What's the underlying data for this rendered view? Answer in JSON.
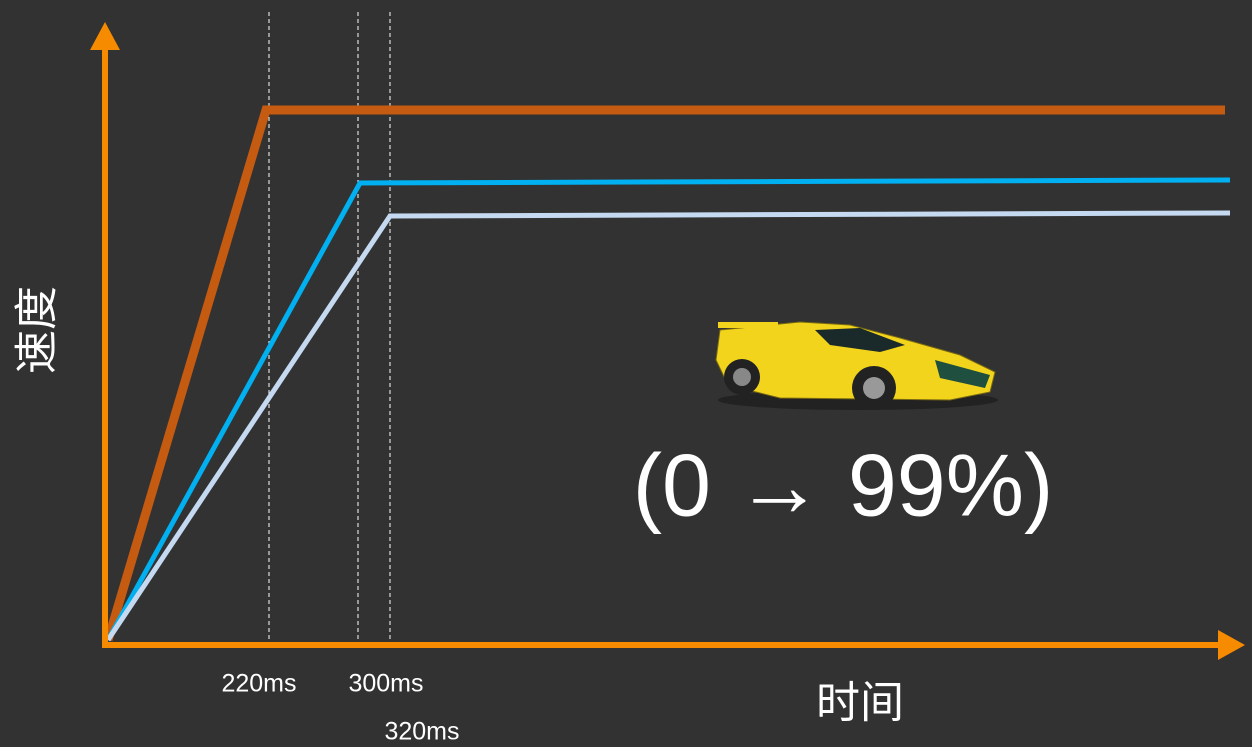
{
  "axes": {
    "y_label": "速度",
    "x_label": "时间"
  },
  "markers": [
    "220ms",
    "300ms",
    "320ms"
  ],
  "annotation": "(0 → 99%)"
}
